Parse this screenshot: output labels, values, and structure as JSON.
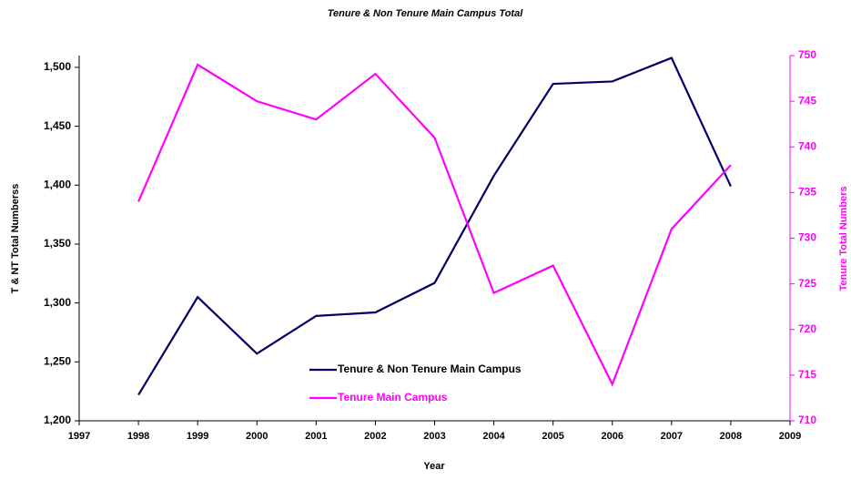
{
  "chart_data": {
    "type": "line",
    "title": "Tenure & Non Tenure Main Campus Total",
    "x_label": "Year",
    "y_label": "T & NT Total Numberss",
    "y2_label": "Tenure Total Numbers",
    "x": [
      1998,
      1999,
      2000,
      2001,
      2002,
      2003,
      2004,
      2005,
      2006,
      2007,
      2008
    ],
    "series": [
      {
        "name": "Tenure & Non Tenure Main Campus",
        "color": "#000066",
        "values": [
          1222,
          1305,
          1257,
          1289,
          1292,
          1317,
          1408,
          1486,
          1488,
          1508,
          1399
        ]
      },
      {
        "name": "Tenure Main Campus",
        "color": "#ff00ff",
        "axis": "y2",
        "values": [
          734,
          749,
          745,
          743,
          748,
          741,
          724,
          727,
          714,
          731,
          738
        ]
      }
    ],
    "xlim": [
      1997,
      2009
    ],
    "xticks": [
      1997,
      1998,
      1999,
      2000,
      2001,
      2002,
      2003,
      2004,
      2005,
      2006,
      2007,
      2008,
      2009
    ],
    "ylim": [
      1200,
      1510
    ],
    "yticks": [
      {
        "value": 1200,
        "label": "1,200"
      },
      {
        "value": 1250,
        "label": "1,250"
      },
      {
        "value": 1300,
        "label": "1,300"
      },
      {
        "value": 1350,
        "label": "1,350"
      },
      {
        "value": 1400,
        "label": "1,400"
      },
      {
        "value": 1450,
        "label": "1,450"
      },
      {
        "value": 1500,
        "label": "1,500"
      }
    ],
    "y2lim": [
      710,
      750
    ],
    "y2ticks": [
      710,
      715,
      720,
      725,
      730,
      735,
      740,
      745,
      750
    ],
    "y2_color": "#ff00ff",
    "grid": false
  }
}
